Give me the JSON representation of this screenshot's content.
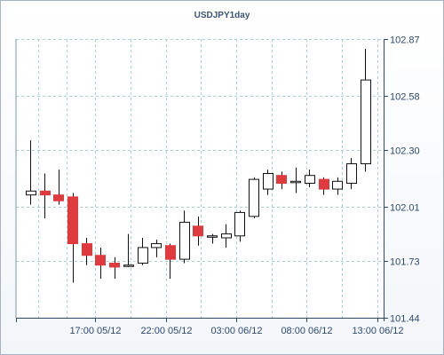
{
  "chart_data": {
    "type": "candlestick",
    "title": "USDJPY1day",
    "xlabel": "",
    "ylabel": "",
    "ylim": [
      101.44,
      102.87
    ],
    "y_ticks": [
      101.44,
      101.73,
      102.01,
      102.3,
      102.58,
      102.87
    ],
    "y_tick_labels": [
      "101.44",
      "101.73",
      "102.01",
      "102.30",
      "102.58",
      "102.87"
    ],
    "x_ticks": [
      {
        "at": 4.65,
        "label": "17:00 05/12"
      },
      {
        "at": 9.7,
        "label": "22:00 05/12"
      },
      {
        "at": 14.75,
        "label": "03:00 06/12"
      },
      {
        "at": 19.8,
        "label": "08:00 06/12"
      },
      {
        "at": 24.85,
        "label": "13:00 06/12"
      }
    ],
    "v_grid_at": [
      0.55,
      2.6,
      4.65,
      7.15,
      9.7,
      12.2,
      14.75,
      17.3,
      19.8,
      22.35,
      24.85
    ],
    "grid": true,
    "colors": {
      "up_fill": "#ffffff",
      "down_fill": "#e0393e",
      "outline": "#111111",
      "grid": "#a9d3dc"
    },
    "candles": [
      {
        "open": 102.07,
        "high": 102.35,
        "low": 102.02,
        "close": 102.09
      },
      {
        "open": 102.09,
        "high": 102.18,
        "low": 101.95,
        "close": 102.07
      },
      {
        "open": 102.07,
        "high": 102.2,
        "low": 102.02,
        "close": 102.04
      },
      {
        "open": 102.06,
        "high": 102.08,
        "low": 101.62,
        "close": 101.82
      },
      {
        "open": 101.82,
        "high": 101.85,
        "low": 101.71,
        "close": 101.76
      },
      {
        "open": 101.76,
        "high": 101.8,
        "low": 101.64,
        "close": 101.71
      },
      {
        "open": 101.72,
        "high": 101.75,
        "low": 101.64,
        "close": 101.7
      },
      {
        "open": 101.71,
        "high": 101.87,
        "low": 101.7,
        "close": 101.71
      },
      {
        "open": 101.72,
        "high": 101.85,
        "low": 101.71,
        "close": 101.8
      },
      {
        "open": 101.8,
        "high": 101.84,
        "low": 101.75,
        "close": 101.82
      },
      {
        "open": 101.81,
        "high": 101.82,
        "low": 101.64,
        "close": 101.74
      },
      {
        "open": 101.74,
        "high": 101.99,
        "low": 101.72,
        "close": 101.93
      },
      {
        "open": 101.91,
        "high": 101.96,
        "low": 101.81,
        "close": 101.86
      },
      {
        "open": 101.86,
        "high": 101.87,
        "low": 101.82,
        "close": 101.86
      },
      {
        "open": 101.85,
        "high": 101.92,
        "low": 101.8,
        "close": 101.87
      },
      {
        "open": 101.86,
        "high": 101.99,
        "low": 101.83,
        "close": 101.98
      },
      {
        "open": 101.96,
        "high": 102.16,
        "low": 101.95,
        "close": 102.15
      },
      {
        "open": 102.1,
        "high": 102.2,
        "low": 102.07,
        "close": 102.18
      },
      {
        "open": 102.17,
        "high": 102.19,
        "low": 102.1,
        "close": 102.13
      },
      {
        "open": 102.14,
        "high": 102.21,
        "low": 102.08,
        "close": 102.14
      },
      {
        "open": 102.13,
        "high": 102.2,
        "low": 102.11,
        "close": 102.17
      },
      {
        "open": 102.15,
        "high": 102.16,
        "low": 102.07,
        "close": 102.1
      },
      {
        "open": 102.1,
        "high": 102.16,
        "low": 102.07,
        "close": 102.14
      },
      {
        "open": 102.13,
        "high": 102.26,
        "low": 102.1,
        "close": 102.23
      },
      {
        "open": 102.23,
        "high": 102.82,
        "low": 102.19,
        "close": 102.66
      }
    ]
  }
}
